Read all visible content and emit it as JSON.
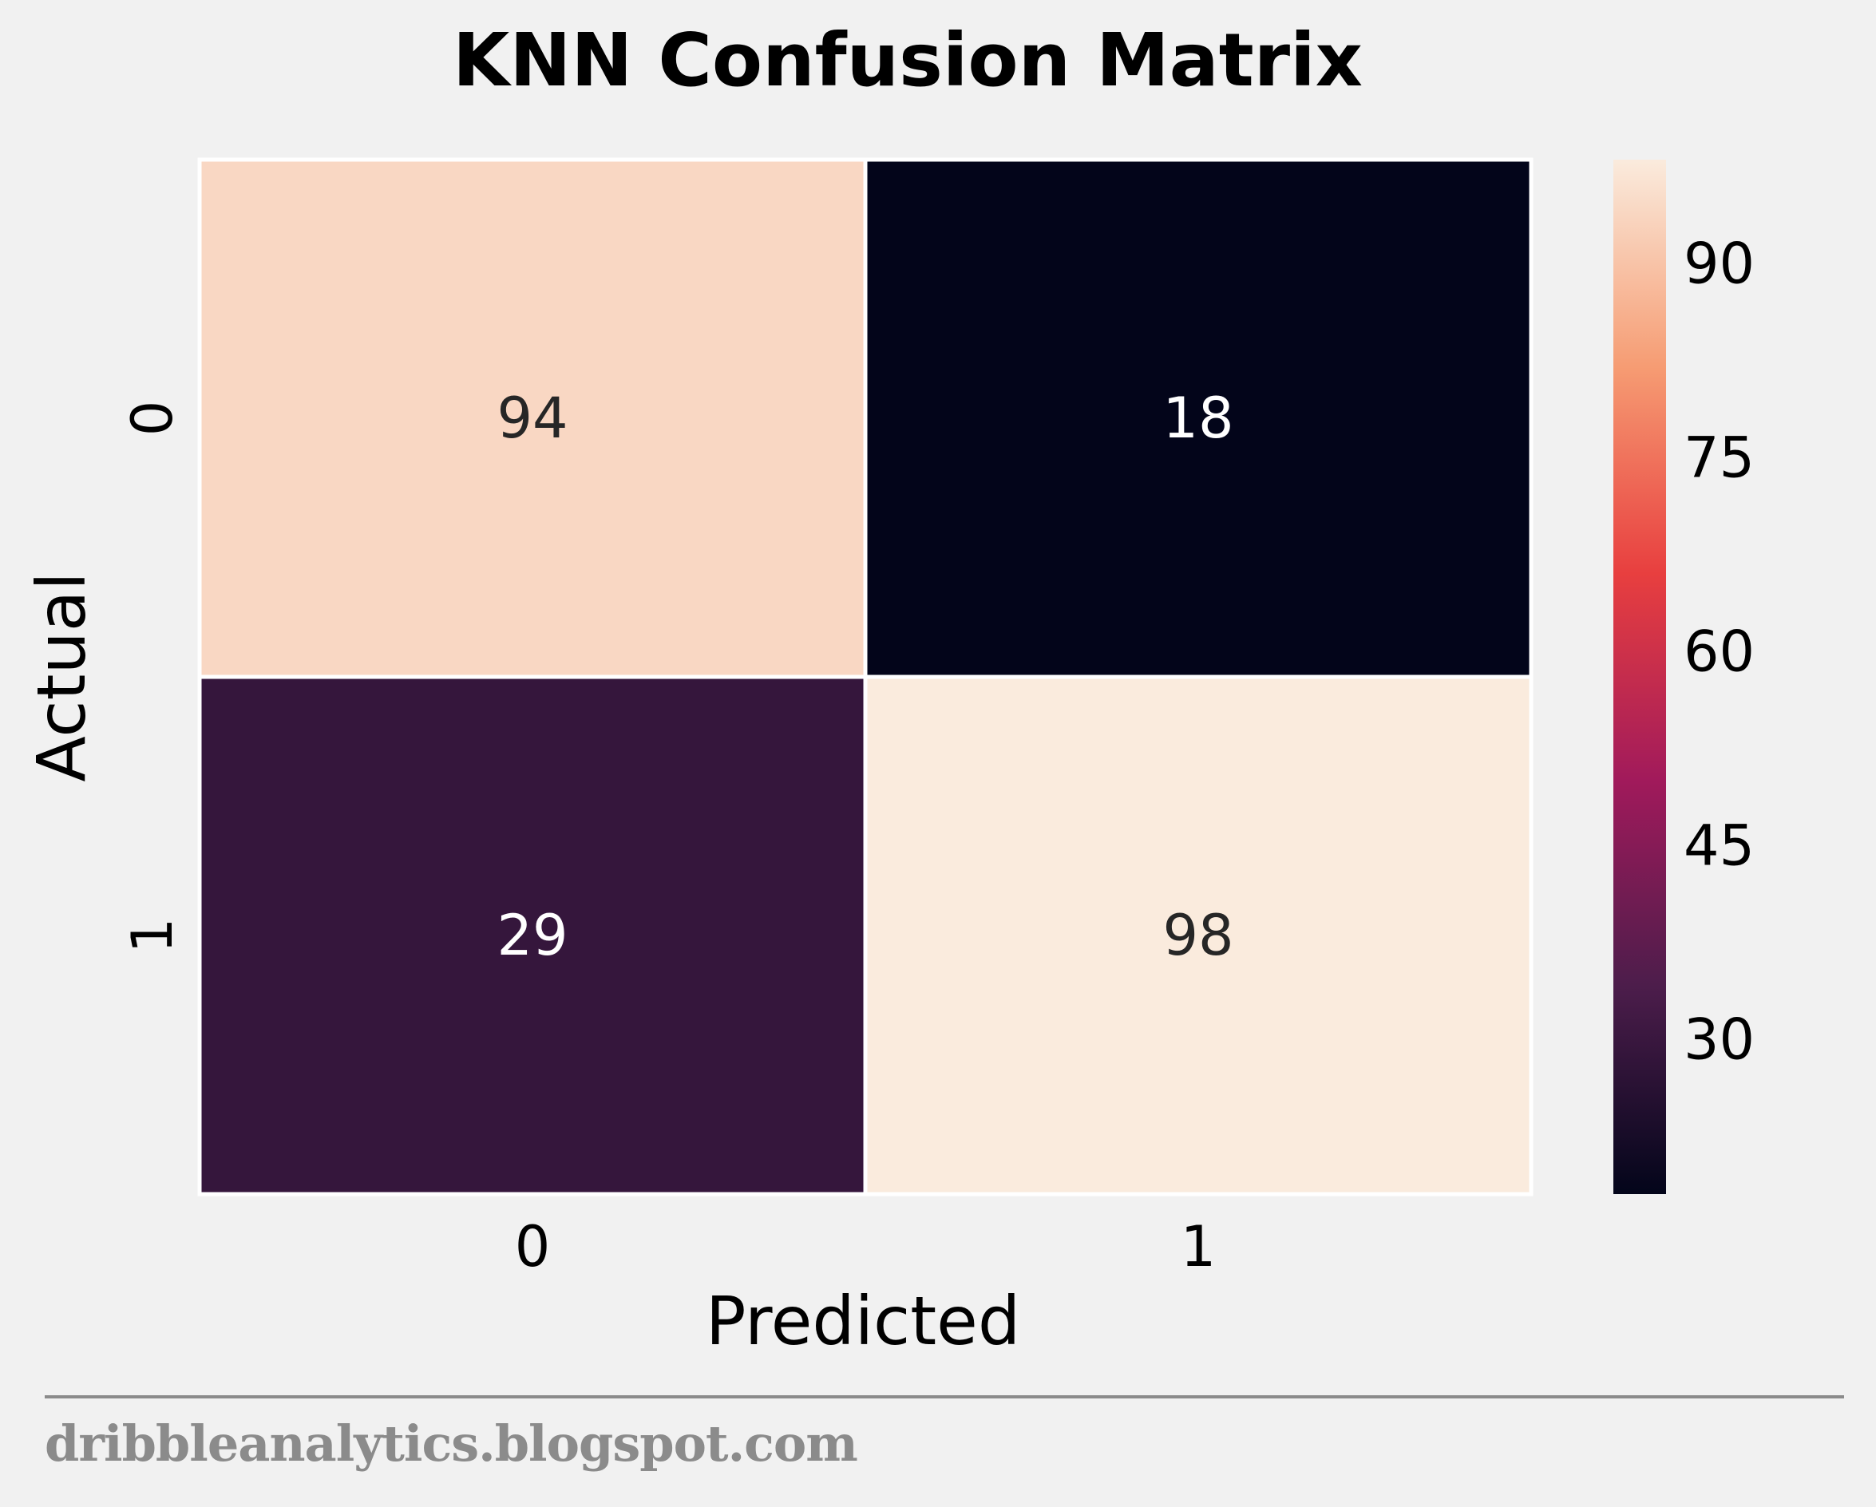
{
  "chart_data": {
    "type": "heatmap",
    "title": "KNN Confusion Matrix",
    "xlabel": "Predicted",
    "ylabel": "Actual",
    "x_categories": [
      "0",
      "1"
    ],
    "y_categories": [
      "0",
      "1"
    ],
    "values": [
      [
        94,
        18
      ],
      [
        29,
        98
      ]
    ],
    "colormap": "rocket",
    "colorbar": {
      "range": [
        18,
        98
      ],
      "ticks": [
        30,
        45,
        60,
        75,
        90
      ],
      "stops": [
        "#03051a",
        "#4c1d4b",
        "#a11a5b",
        "#e83f3f",
        "#f69c73",
        "#faebdd"
      ]
    },
    "cell_label_colors": {
      "light": "#ffffff",
      "dark": "#262626"
    },
    "grid": false,
    "legend": "colorbar-right"
  },
  "footer": {
    "credit": "dribbleanalytics.blogspot.com"
  }
}
